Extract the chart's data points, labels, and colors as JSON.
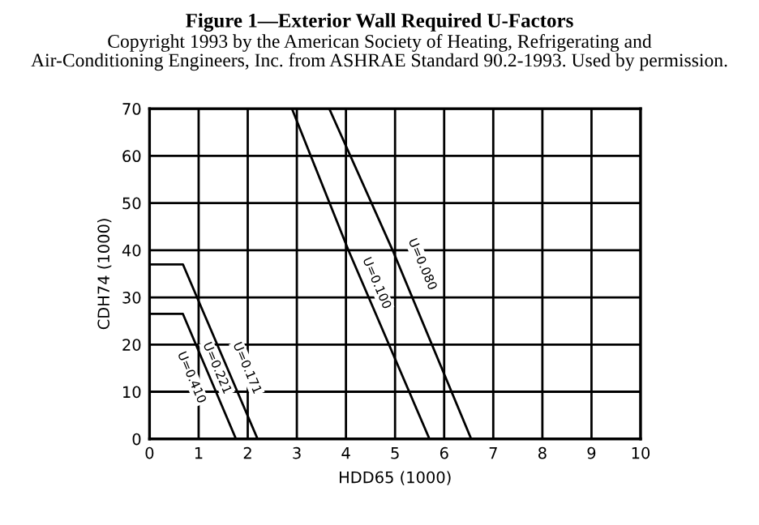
{
  "chart_data": {
    "type": "line",
    "title": "Figure 1—Exterior Wall Required U-Factors",
    "subtitle": "Copyright 1993 by the American Society of Heating, Refrigerating and\nAir-Conditioning Engineers, Inc. from ASHRAE Standard 90.2-1993. Used by permission.",
    "xlabel": "HDD65 (1000)",
    "ylabel": "CDH74 (1000)",
    "series": [
      {
        "color": "#000000",
        "x": [
          0,
          0.68,
          1.76
        ],
        "values": [
          26.5,
          26.5,
          0
        ]
      },
      {
        "color": "#000000",
        "x": [
          0,
          0.68,
          2.2
        ],
        "values": [
          37,
          37,
          0
        ]
      },
      {
        "color": "#000000",
        "x": [
          2.9,
          4.05,
          5.7
        ],
        "values": [
          70,
          40,
          0
        ]
      },
      {
        "color": "#000000",
        "x": [
          3.66,
          4.95,
          6.55
        ],
        "values": [
          70,
          40,
          0
        ]
      }
    ],
    "annotations": [
      "U=0.410",
      "U=0.221",
      "U=0.171",
      "U=0.100",
      "U=0.080"
    ],
    "xlim": [
      0,
      10
    ],
    "ylim": [
      0,
      70
    ],
    "xticks": [
      0,
      1,
      2,
      3,
      4,
      5,
      6,
      7,
      8,
      9,
      10
    ],
    "yticks": [
      0,
      10,
      20,
      30,
      40,
      50,
      60,
      70
    ],
    "grid": true,
    "legend": false,
    "marker": "none",
    "line_style": "solid"
  }
}
